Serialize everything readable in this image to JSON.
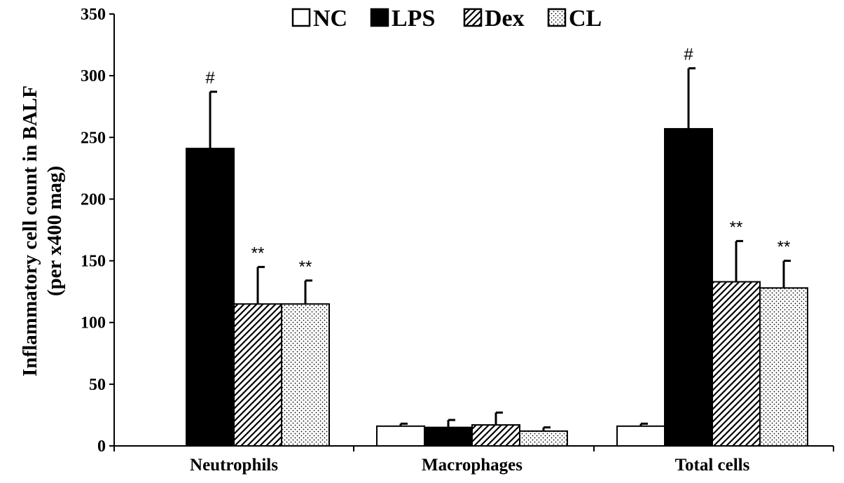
{
  "chart_data": {
    "type": "bar",
    "categories": [
      "Neutrophils",
      "Macrophages",
      "Total cells"
    ],
    "series": [
      {
        "name": "NC",
        "values": [
          0,
          16,
          16
        ],
        "errors": [
          0,
          2,
          2
        ],
        "pattern": "white"
      },
      {
        "name": "LPS",
        "values": [
          241,
          15,
          257
        ],
        "errors": [
          46,
          6,
          49
        ],
        "pattern": "black"
      },
      {
        "name": "Dex",
        "values": [
          115,
          17,
          133
        ],
        "errors": [
          30,
          10,
          33
        ],
        "pattern": "hatch"
      },
      {
        "name": "CL",
        "values": [
          115,
          12,
          128
        ],
        "errors": [
          19,
          3,
          22
        ],
        "pattern": "dots"
      }
    ],
    "significance": [
      [
        "",
        "",
        ""
      ],
      [
        "#",
        "",
        "#"
      ],
      [
        "**",
        "",
        "**"
      ],
      [
        "**",
        "",
        "**"
      ]
    ],
    "title": "",
    "xlabel": "",
    "ylabel": [
      "Inflammatory  cell count in BALF",
      "(per x400 mag)"
    ],
    "ylim": [
      0,
      350
    ],
    "yticks": [
      0,
      50,
      100,
      150,
      200,
      250,
      300,
      350
    ],
    "grid": false,
    "legend_position": "top-center"
  }
}
